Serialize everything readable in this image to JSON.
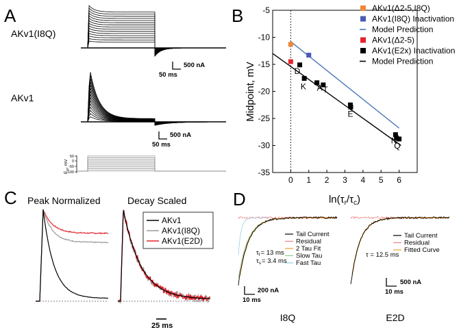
{
  "panels": {
    "A": {
      "letter": "A",
      "trace_labels": [
        "AKv1(I8Q)",
        "AKv1"
      ],
      "scalebar_top": {
        "current": "500 nA",
        "time": "50 ms"
      },
      "scalebar_mid": {
        "current": "500 nA",
        "time": "50 ms"
      },
      "protocol_ylabel": "E",
      "protocol_ylabel_sub": "M",
      "protocol_ylabel_unit": ", mV",
      "protocol_ticks": [
        "50",
        "0",
        "-50",
        "-100"
      ]
    },
    "B": {
      "letter": "B"
    },
    "C": {
      "letter": "C",
      "titles": [
        "Peak Normalized",
        "Decay Scaled"
      ],
      "legend": [
        {
          "label": "AKv1",
          "color": "#000000"
        },
        {
          "label": "AKv1(I8Q)",
          "color": "#999999"
        },
        {
          "label": "AKv1(E2D)",
          "color": "#e3232b"
        }
      ],
      "scalebar": "25 ms"
    },
    "D": {
      "letter": "D",
      "left": {
        "legend": [
          {
            "label": "Tail Current",
            "color": "#000000"
          },
          {
            "label": "Residual",
            "color": "#f08080"
          },
          {
            "label": "2 Tau Fit",
            "color": "#f0a030"
          },
          {
            "label": "Slow Tau",
            "color": "#90c890"
          },
          {
            "label": "Fast Tau",
            "color": "#90d0e8"
          }
        ],
        "tau_f": "= 13 ms",
        "tau_s": "= 3.4 ms",
        "tau_f_sub": "f",
        "tau_s_sub": "s",
        "scalebar": {
          "current": "200 nA",
          "time": "10 ms"
        },
        "caption": "I8Q"
      },
      "right": {
        "legend": [
          {
            "label": "Tail Current",
            "color": "#000000"
          },
          {
            "label": "Residual",
            "color": "#f08080"
          },
          {
            "label": "Fitted Curve",
            "color": "#f0a030"
          }
        ],
        "tau": "= 12.5 ms",
        "scalebar": {
          "current": "500 nA",
          "time": "10 ms"
        },
        "caption": "E2D"
      }
    }
  },
  "chart_data": {
    "type": "scatter",
    "panel": "B",
    "xlabel": "ln(τ",
    "xlabel_sub1": "r",
    "xlabel_mid": "/τ",
    "xlabel_sub2": "c",
    "xlabel_end": ")",
    "ylabel": "Midpoint, mV",
    "xlim": [
      -1,
      7
    ],
    "ylim": [
      -35,
      -5
    ],
    "xticks": [
      0,
      1,
      2,
      3,
      4,
      5,
      6
    ],
    "yticks": [
      -5,
      -10,
      -15,
      -20,
      -25,
      -30,
      -35
    ],
    "legend_position": "top-right",
    "series": [
      {
        "name": "AKv1(Δ2-5,I8Q)",
        "kind": "points",
        "color": "#f0873a",
        "points": [
          [
            0,
            -11.3
          ]
        ]
      },
      {
        "name": "AKv1(I8Q) Inactivation",
        "kind": "points",
        "color": "#4a5bb5",
        "points": [
          [
            1.0,
            -13.3
          ]
        ]
      },
      {
        "name": "Model Prediction",
        "kind": "line",
        "color": "#4a77b8",
        "line": [
          [
            0,
            -10.8
          ],
          [
            6,
            -26.8
          ]
        ]
      },
      {
        "name": "AKv1(Δ2-5)",
        "kind": "points",
        "color": "#e3232b",
        "points": [
          [
            0,
            -14.5
          ]
        ]
      },
      {
        "name": "AKv1(E2x) Inactivation",
        "kind": "points",
        "color": "#000000",
        "points": [
          [
            0.5,
            -15.1
          ],
          [
            0.75,
            -17.6
          ],
          [
            1.45,
            -18.4
          ],
          [
            1.8,
            -18.8
          ],
          [
            3.3,
            -22.5
          ],
          [
            3.32,
            -22.9
          ],
          [
            5.8,
            -28.0
          ],
          [
            5.85,
            -28.6
          ],
          [
            6.0,
            -28.8
          ]
        ]
      },
      {
        "name": "Model Prediction",
        "kind": "line",
        "color": "#000000",
        "line": [
          [
            -1,
            -13.0
          ],
          [
            6.1,
            -30.0
          ]
        ]
      }
    ],
    "point_labels": [
      {
        "text": "D",
        "x": 0.2,
        "y": -16.8
      },
      {
        "text": "K",
        "x": 0.55,
        "y": -19.6
      },
      {
        "text": "A",
        "x": 1.45,
        "y": -19.9
      },
      {
        "text": "T",
        "x": 1.78,
        "y": -20.2
      },
      {
        "text": "E",
        "x": 3.15,
        "y": -24.7
      },
      {
        "text": "N",
        "x": 5.55,
        "y": -29.6
      },
      {
        "text": "Q",
        "x": 5.72,
        "y": -30.6
      }
    ]
  }
}
